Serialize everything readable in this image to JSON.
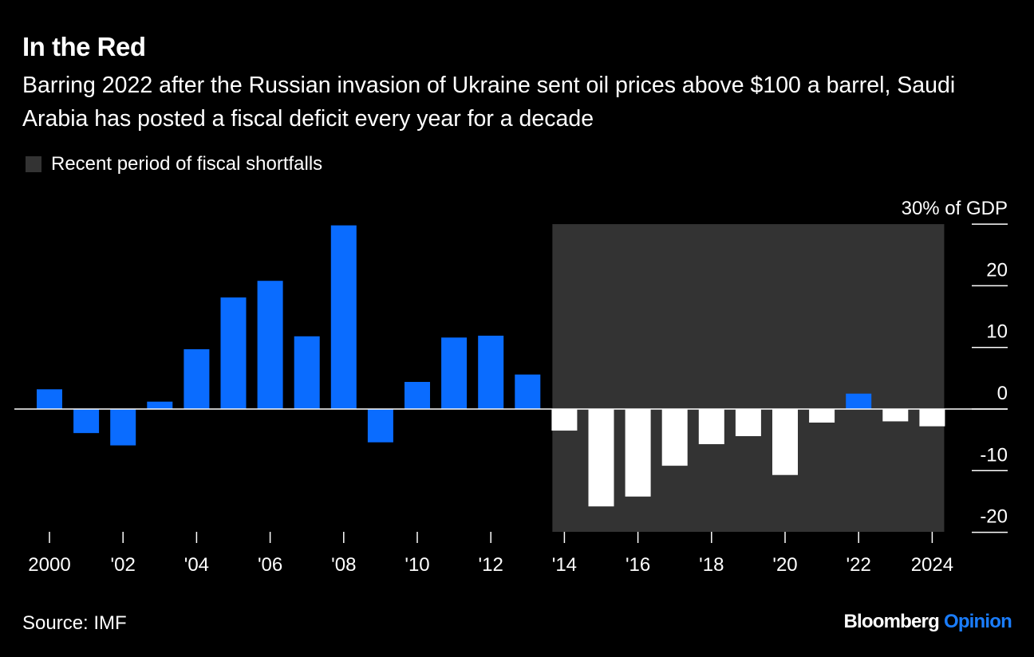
{
  "title": "In the Red",
  "subtitle": "Barring 2022 after the Russian invasion of Ukraine sent oil prices above $100 a barrel, Saudi Arabia has posted a fiscal deficit every year for a decade",
  "legend": {
    "label": "Recent period of fiscal shortfalls",
    "color": "#333333"
  },
  "source": "Source: IMF",
  "brand": {
    "name": "Bloomberg",
    "suffix": "Opinion",
    "suffix_color": "#1a7dff"
  },
  "colors": {
    "bar": "#0a6cff",
    "bar_shaded": "#ffffff",
    "background": "#000000",
    "shade": "#333333"
  },
  "chart_data": {
    "type": "bar",
    "title": "In the Red",
    "ylabel": "30% of GDP",
    "ylim": [
      -20,
      30
    ],
    "yticks": [
      30,
      20,
      10,
      0,
      -10,
      -20
    ],
    "ytick_labels": [
      "30% of GDP",
      "20",
      "10",
      "0",
      "-10",
      "-20"
    ],
    "grid": false,
    "legend_position": "top-left",
    "shaded_period": {
      "from": 2014,
      "to": 2024,
      "label": "Recent period of fiscal shortfalls"
    },
    "categories": [
      2000,
      2001,
      2002,
      2003,
      2004,
      2005,
      2006,
      2007,
      2008,
      2009,
      2010,
      2011,
      2012,
      2013,
      2014,
      2015,
      2016,
      2017,
      2018,
      2019,
      2020,
      2021,
      2022,
      2023,
      2024
    ],
    "values": [
      3.2,
      -3.9,
      -5.9,
      1.2,
      9.7,
      18.1,
      20.8,
      11.8,
      29.8,
      -5.4,
      4.4,
      11.6,
      11.9,
      5.6,
      -3.5,
      -15.8,
      -14.2,
      -9.2,
      -5.7,
      -4.4,
      -10.7,
      -2.2,
      2.5,
      -2.0,
      -2.8
    ],
    "xtick_labels": [
      "2000",
      "'02",
      "'04",
      "'06",
      "'08",
      "'10",
      "'12",
      "'14",
      "'16",
      "'18",
      "'20",
      "'22",
      "2024"
    ]
  }
}
